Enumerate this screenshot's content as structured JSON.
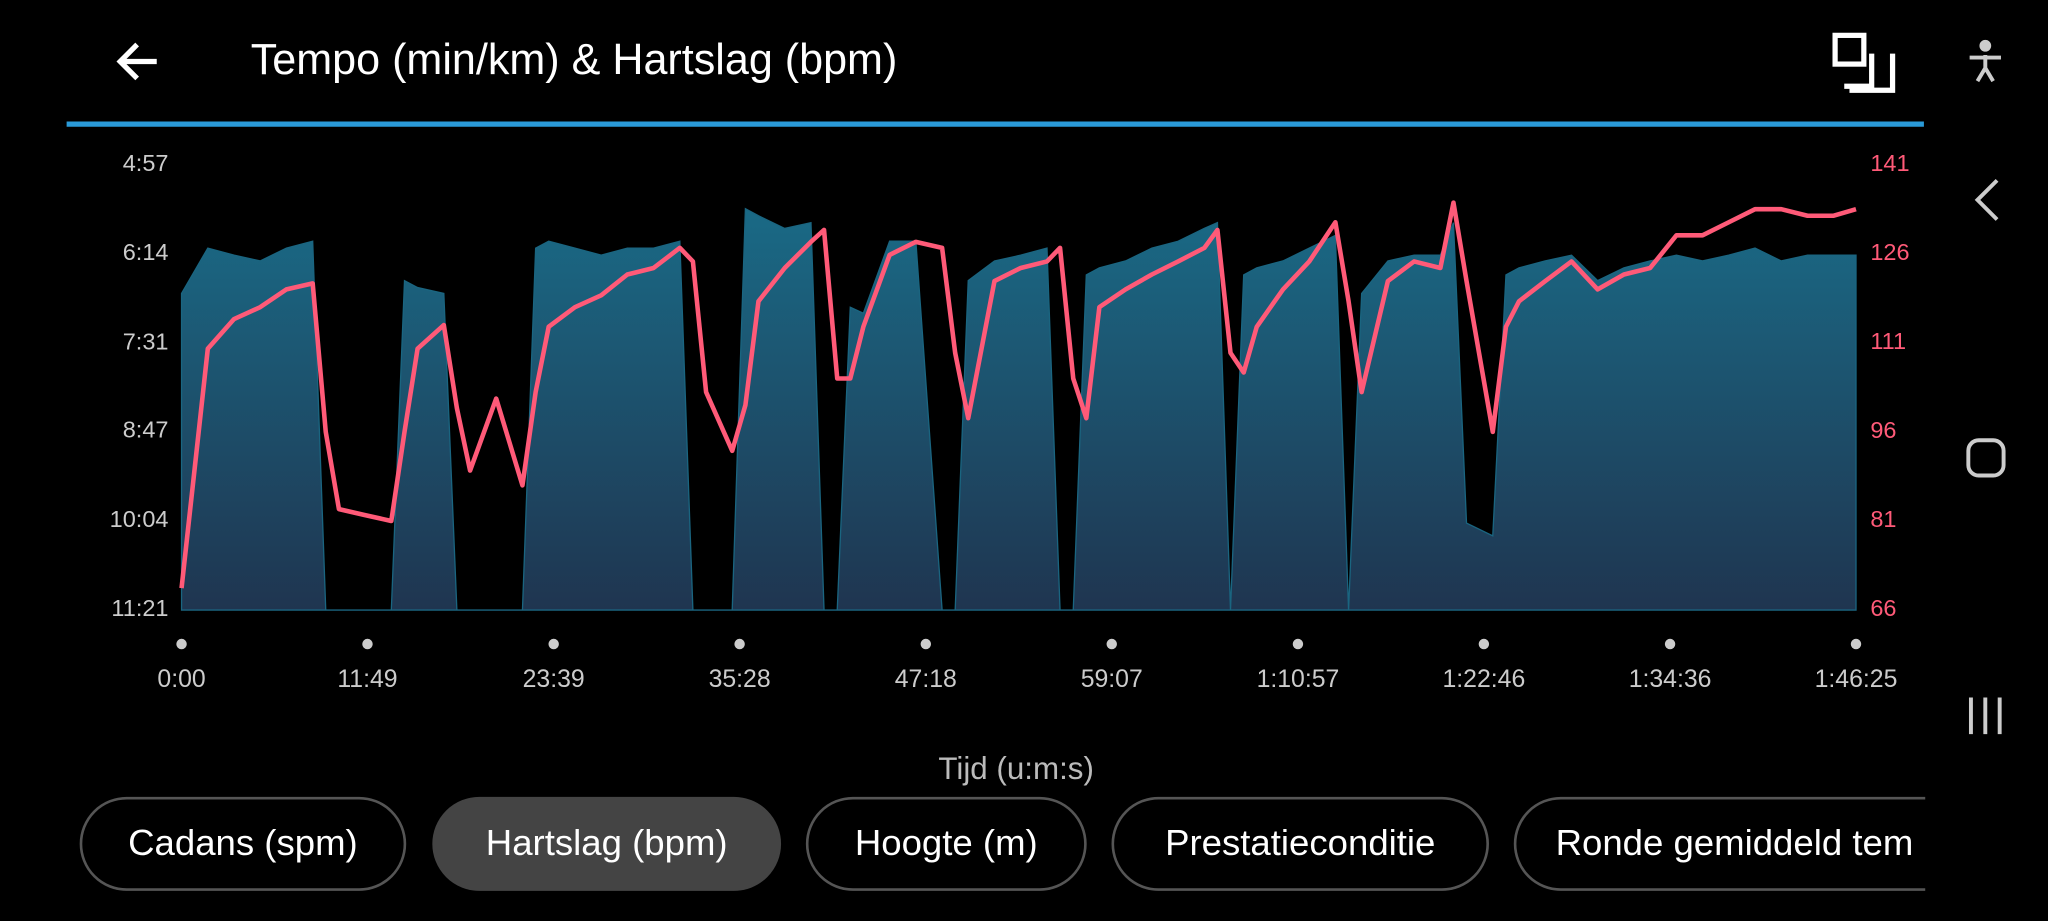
{
  "header": {
    "title": "Tempo (min/km) & Hartslag (bpm)"
  },
  "chart_data": {
    "type": "line",
    "x_label": "Tijd (u:m:s)",
    "x": [
      0,
      100,
      200,
      300,
      400,
      500,
      550,
      600,
      700,
      800,
      850,
      900,
      1000,
      1050,
      1100,
      1200,
      1300,
      1350,
      1400,
      1500,
      1600,
      1700,
      1800,
      1900,
      1950,
      2000,
      2100,
      2150,
      2200,
      2300,
      2400,
      2450,
      2500,
      2550,
      2600,
      2700,
      2800,
      2900,
      2950,
      3000,
      3100,
      3200,
      3300,
      3350,
      3400,
      3450,
      3500,
      3600,
      3700,
      3800,
      3900,
      3950,
      4000,
      4050,
      4100,
      4200,
      4300,
      4400,
      4450,
      4500,
      4600,
      4700,
      4800,
      4850,
      4900,
      5000,
      5050,
      5100,
      5200,
      5300,
      5400,
      5500,
      5600,
      5700,
      5800,
      5900,
      6000,
      6100,
      6200,
      6300,
      6385
    ],
    "series": [
      {
        "kind": "area",
        "color": "#1a6580",
        "values": [
          408,
          369,
          375,
          380,
          369,
          363,
          681,
          681,
          681,
          681,
          397,
          403,
          408,
          681,
          681,
          681,
          681,
          369,
          363,
          369,
          375,
          369,
          369,
          363,
          681,
          681,
          681,
          335,
          341,
          352,
          347,
          681,
          681,
          420,
          425,
          363,
          363,
          681,
          681,
          397,
          380,
          375,
          369,
          681,
          681,
          392,
          386,
          380,
          369,
          363,
          352,
          347,
          681,
          392,
          386,
          380,
          369,
          358,
          681,
          408,
          380,
          375,
          375,
          347,
          606,
          617,
          392,
          386,
          380,
          375,
          397,
          386,
          380,
          375,
          380,
          375,
          369,
          380,
          375,
          375,
          375
        ]
      },
      {
        "kind": "line",
        "color": "#ff5a78",
        "axis": "y2",
        "values": [
          69.7,
          110,
          115,
          117,
          120,
          121,
          96,
          83,
          82,
          81,
          96,
          110,
          114,
          100,
          89.5,
          101.6,
          87,
          102.7,
          113.7,
          117,
          119,
          122.5,
          123.6,
          127,
          124.7,
          102.7,
          92.8,
          100.5,
          118,
          123.6,
          128,
          130,
          105,
          105,
          113.7,
          125.8,
          128,
          127,
          109.3,
          98.3,
          121.4,
          123.6,
          124.7,
          127,
          105,
          98.3,
          117,
          120,
          122.5,
          124.7,
          127,
          130,
          109.3,
          106,
          113.7,
          120,
          124.7,
          131.3,
          118,
          102.7,
          121.4,
          124.7,
          123.6,
          134.6,
          121.4,
          96,
          113.7,
          118,
          121.4,
          124.7,
          120,
          122.5,
          123.6,
          129.1,
          129.1,
          131.3,
          133.5,
          133.5,
          132.4,
          132.4,
          133.5
        ]
      }
    ],
    "xlim": [
      0,
      6385
    ],
    "xticks": [
      {
        "value": 0,
        "label": "0:00"
      },
      {
        "value": 709,
        "label": "11:49"
      },
      {
        "value": 1419,
        "label": "23:39"
      },
      {
        "value": 2128,
        "label": "35:28"
      },
      {
        "value": 2838,
        "label": "47:18"
      },
      {
        "value": 3547,
        "label": "59:07"
      },
      {
        "value": 4257,
        "label": "1:10:57"
      },
      {
        "value": 4966,
        "label": "1:22:46"
      },
      {
        "value": 5676,
        "label": "1:34:36"
      },
      {
        "value": 6385,
        "label": "1:46:25"
      }
    ],
    "ylim": [
      681,
      297
    ],
    "yticks": [
      {
        "value": 681,
        "label": "11:21"
      },
      {
        "value": 604,
        "label": "10:04"
      },
      {
        "value": 527,
        "label": "8:47"
      },
      {
        "value": 451,
        "label": "7:31"
      },
      {
        "value": 374,
        "label": "6:14"
      },
      {
        "value": 297,
        "label": "4:57"
      }
    ],
    "y2lim": [
      66,
      141
    ],
    "y2ticks": [
      66,
      81,
      96,
      111,
      126,
      141
    ]
  },
  "tabs": {
    "selected": 1,
    "items": [
      "Cadans (spm)",
      "Hartslag (bpm)",
      "Hoogte (m)",
      "Prestatieconditie",
      "Ronde gemiddeld tem"
    ]
  }
}
